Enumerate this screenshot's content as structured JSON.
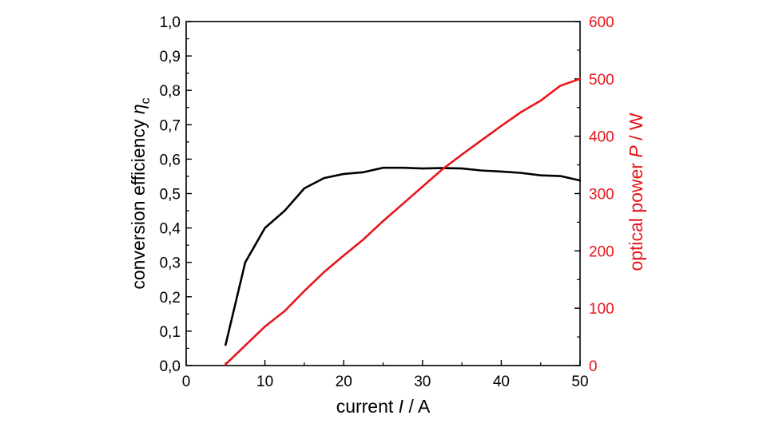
{
  "chart_data": {
    "type": "line",
    "title": "",
    "xlabel": {
      "prefix": "current ",
      "symbol": "I",
      "suffix": " / A"
    },
    "ylabel_left": {
      "prefix": "conversion efficiency ",
      "symbol": "η",
      "subscript": "c"
    },
    "ylabel_right": {
      "prefix": "optical power ",
      "symbol": "P",
      "suffix": " / W"
    },
    "xlim": [
      0,
      50
    ],
    "ylim_left": [
      0.0,
      1.0
    ],
    "ylim_right": [
      0,
      600
    ],
    "x_ticks": [
      "0",
      "10",
      "20",
      "30",
      "40",
      "50"
    ],
    "y_left_ticks": [
      "0,0",
      "0,1",
      "0,2",
      "0,3",
      "0,4",
      "0,5",
      "0,6",
      "0,7",
      "0,8",
      "0,9",
      "1,0"
    ],
    "y_right_ticks": [
      "0",
      "100",
      "200",
      "300",
      "400",
      "500",
      "600"
    ],
    "grid": false,
    "colors": {
      "efficiency": "#000000",
      "power": "#e8141b",
      "axes": "#000000"
    },
    "series": [
      {
        "axis": "left",
        "color": "#000000",
        "x": [
          5,
          7.5,
          10,
          12.5,
          15,
          17.5,
          20,
          22.5,
          25,
          27.5,
          30,
          32.5,
          35,
          37.5,
          40,
          42.5,
          45,
          47.5,
          50
        ],
        "y": [
          0.06,
          0.3,
          0.4,
          0.45,
          0.515,
          0.545,
          0.557,
          0.562,
          0.575,
          0.575,
          0.573,
          0.574,
          0.573,
          0.567,
          0.564,
          0.56,
          0.553,
          0.551,
          0.538
        ]
      },
      {
        "axis": "right",
        "color": "#e8141b",
        "x": [
          5,
          7.5,
          10,
          12.5,
          15,
          17.5,
          20,
          22.5,
          25,
          27.5,
          30,
          32.5,
          35,
          37.5,
          40,
          42.5,
          45,
          47.5,
          50
        ],
        "y": [
          2,
          35,
          68,
          95,
          130,
          163,
          192,
          220,
          252,
          282,
          312,
          342,
          368,
          393,
          418,
          442,
          462,
          488,
          500
        ]
      }
    ]
  }
}
